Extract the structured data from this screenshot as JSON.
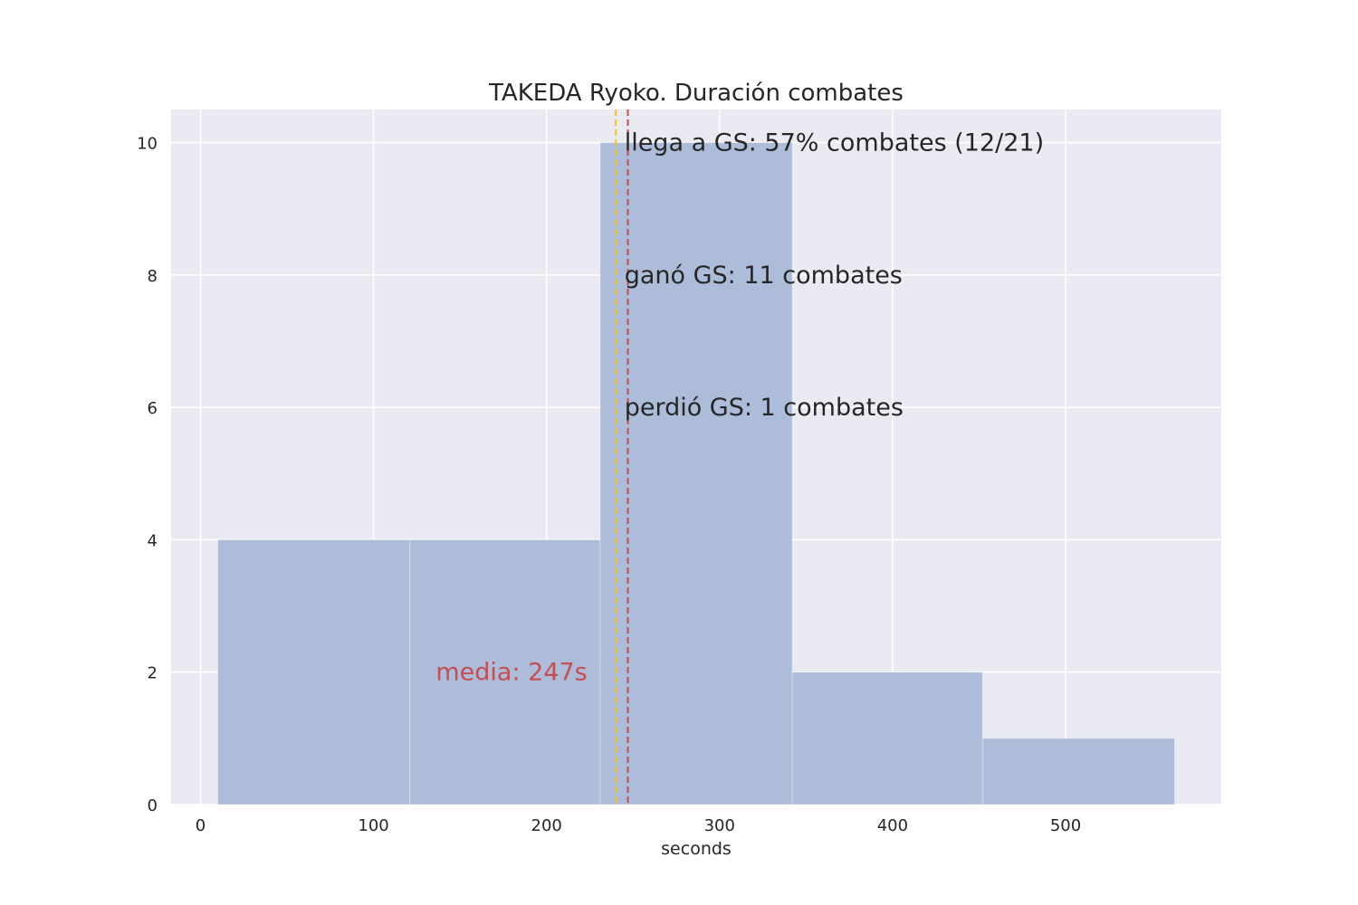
{
  "chart_data": {
    "type": "bar",
    "title": "TAKEDA Ryoko. Duración combates",
    "xlabel": "seconds",
    "ylabel": "",
    "xlim": [
      -17,
      590
    ],
    "ylim": [
      0,
      10.5
    ],
    "xticks": [
      0,
      100,
      200,
      300,
      400,
      500
    ],
    "yticks": [
      0,
      2,
      4,
      6,
      8,
      10
    ],
    "grid": true,
    "bins": [
      {
        "x0": 10,
        "x1": 121,
        "value": 4
      },
      {
        "x0": 121,
        "x1": 231,
        "value": 4
      },
      {
        "x0": 231,
        "x1": 342,
        "value": 10
      },
      {
        "x0": 342,
        "x1": 452,
        "value": 2
      },
      {
        "x0": 452,
        "x1": 563,
        "value": 1
      }
    ],
    "vlines": [
      {
        "name": "gs-line",
        "x": 240,
        "color": "#f5c518"
      },
      {
        "name": "mean-line",
        "x": 247,
        "color": "#c44e52"
      }
    ],
    "annotations": [
      {
        "name": "annotation-llega-gs",
        "text": "llega a GS: 57% combates (12/21)",
        "x": 245,
        "y": 10
      },
      {
        "name": "annotation-gano-gs",
        "text": "ganó GS: 11 combates",
        "x": 245,
        "y": 8
      },
      {
        "name": "annotation-perdio-gs",
        "text": "perdió GS: 1 combates",
        "x": 245,
        "y": 6
      },
      {
        "name": "annotation-media",
        "text": "media: 247s",
        "x": 136,
        "y": 2,
        "color": "#c44e52"
      }
    ],
    "colors": {
      "bar": "#a9b9d7",
      "plot_bg": "#eaeaf2",
      "grid": "#ffffff"
    }
  }
}
